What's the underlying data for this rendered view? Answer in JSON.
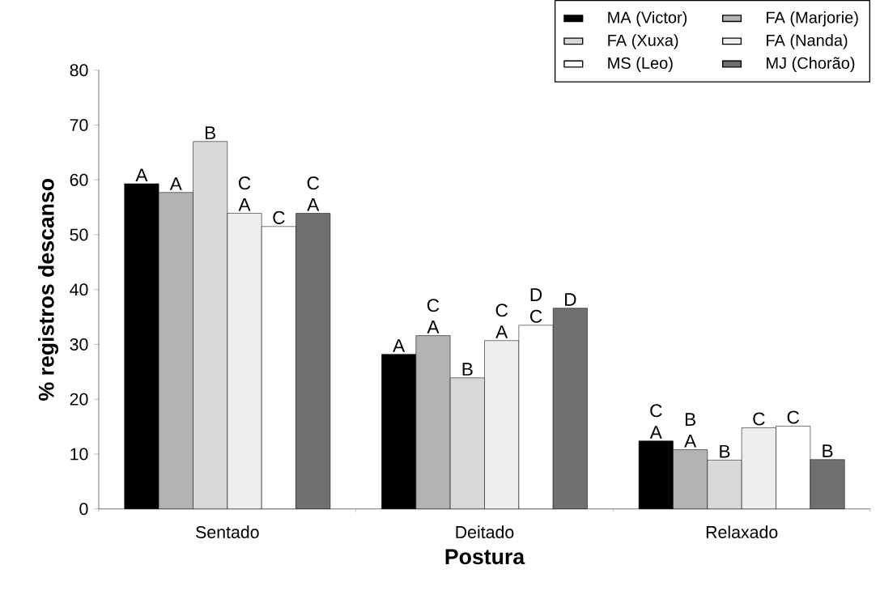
{
  "chart_data": {
    "type": "bar",
    "xlabel": "Postura",
    "ylabel": "% registros descanso",
    "categories": [
      "Sentado",
      "Deitado",
      "Relaxado"
    ],
    "series": [
      {
        "name": "MA (Victor)",
        "color": "#000000",
        "values": [
          59.3,
          28.2,
          12.4
        ],
        "value_labels": [
          "A",
          "A",
          "C A"
        ]
      },
      {
        "name": "FA (Marjorie)",
        "color": "#b3b3b3",
        "values": [
          57.7,
          31.6,
          10.8
        ],
        "value_labels": [
          "A",
          "C A",
          "B A"
        ]
      },
      {
        "name": "FA (Xuxa)",
        "color": "#d9d9d9",
        "values": [
          67.0,
          23.9,
          8.9
        ],
        "value_labels": [
          "B",
          "B",
          "B"
        ]
      },
      {
        "name": "FA (Nanda)",
        "color": "#eeeeee",
        "values": [
          53.9,
          30.7,
          14.8
        ],
        "value_labels": [
          "C A",
          "C A",
          "C"
        ]
      },
      {
        "name": "MS (Leo)",
        "color": "#ffffff",
        "values": [
          51.5,
          33.5,
          15.1
        ],
        "value_labels": [
          "C",
          "D C",
          "C"
        ]
      },
      {
        "name": "MJ (Chorão)",
        "color": "#707070",
        "values": [
          53.9,
          36.6,
          9.0
        ],
        "value_labels": [
          "C A",
          "D",
          "B"
        ]
      }
    ],
    "ylim": [
      0,
      80
    ],
    "yticks": [
      0,
      10,
      20,
      30,
      40,
      50,
      60,
      70,
      80
    ],
    "legend": "top right"
  }
}
